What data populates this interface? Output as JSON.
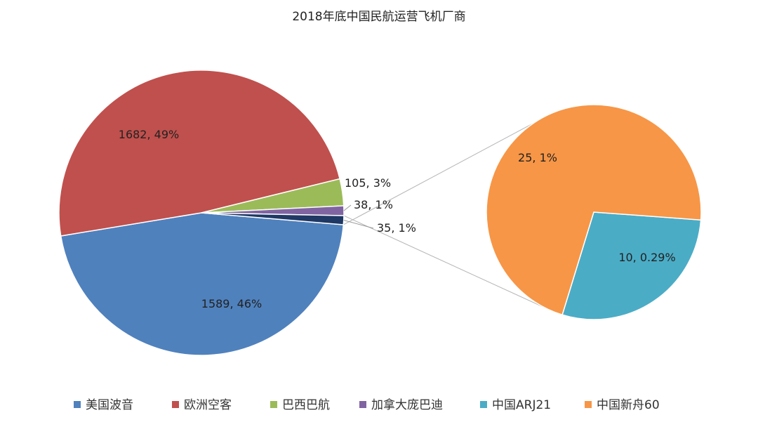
{
  "chart_data": {
    "type": "pie",
    "subtype": "pie-of-pie",
    "title": "2018年底中国民航运营飞机厂商",
    "categories": [
      "美国波音",
      "欧洲空客",
      "巴西巴航",
      "加拿大庞巴迪",
      "中国ARJ21",
      "中国新舟60"
    ],
    "values": [
      1589,
      1682,
      105,
      38,
      10,
      25
    ],
    "data_labels": [
      "1589, 46%",
      "1682, 49%",
      "105, 3%",
      "38, 1%",
      "10, 0.29%",
      "25, 1%"
    ],
    "secondary_group_label": "35, 1%",
    "secondary_pie_members": [
      "中国ARJ21",
      "中国新舟60"
    ],
    "colors": [
      "#4F81BD",
      "#C0504D",
      "#9BBB59",
      "#8064A2",
      "#4BACC6",
      "#F79646"
    ],
    "secondary_group_color": "#1F3864",
    "legend_position": "bottom"
  }
}
